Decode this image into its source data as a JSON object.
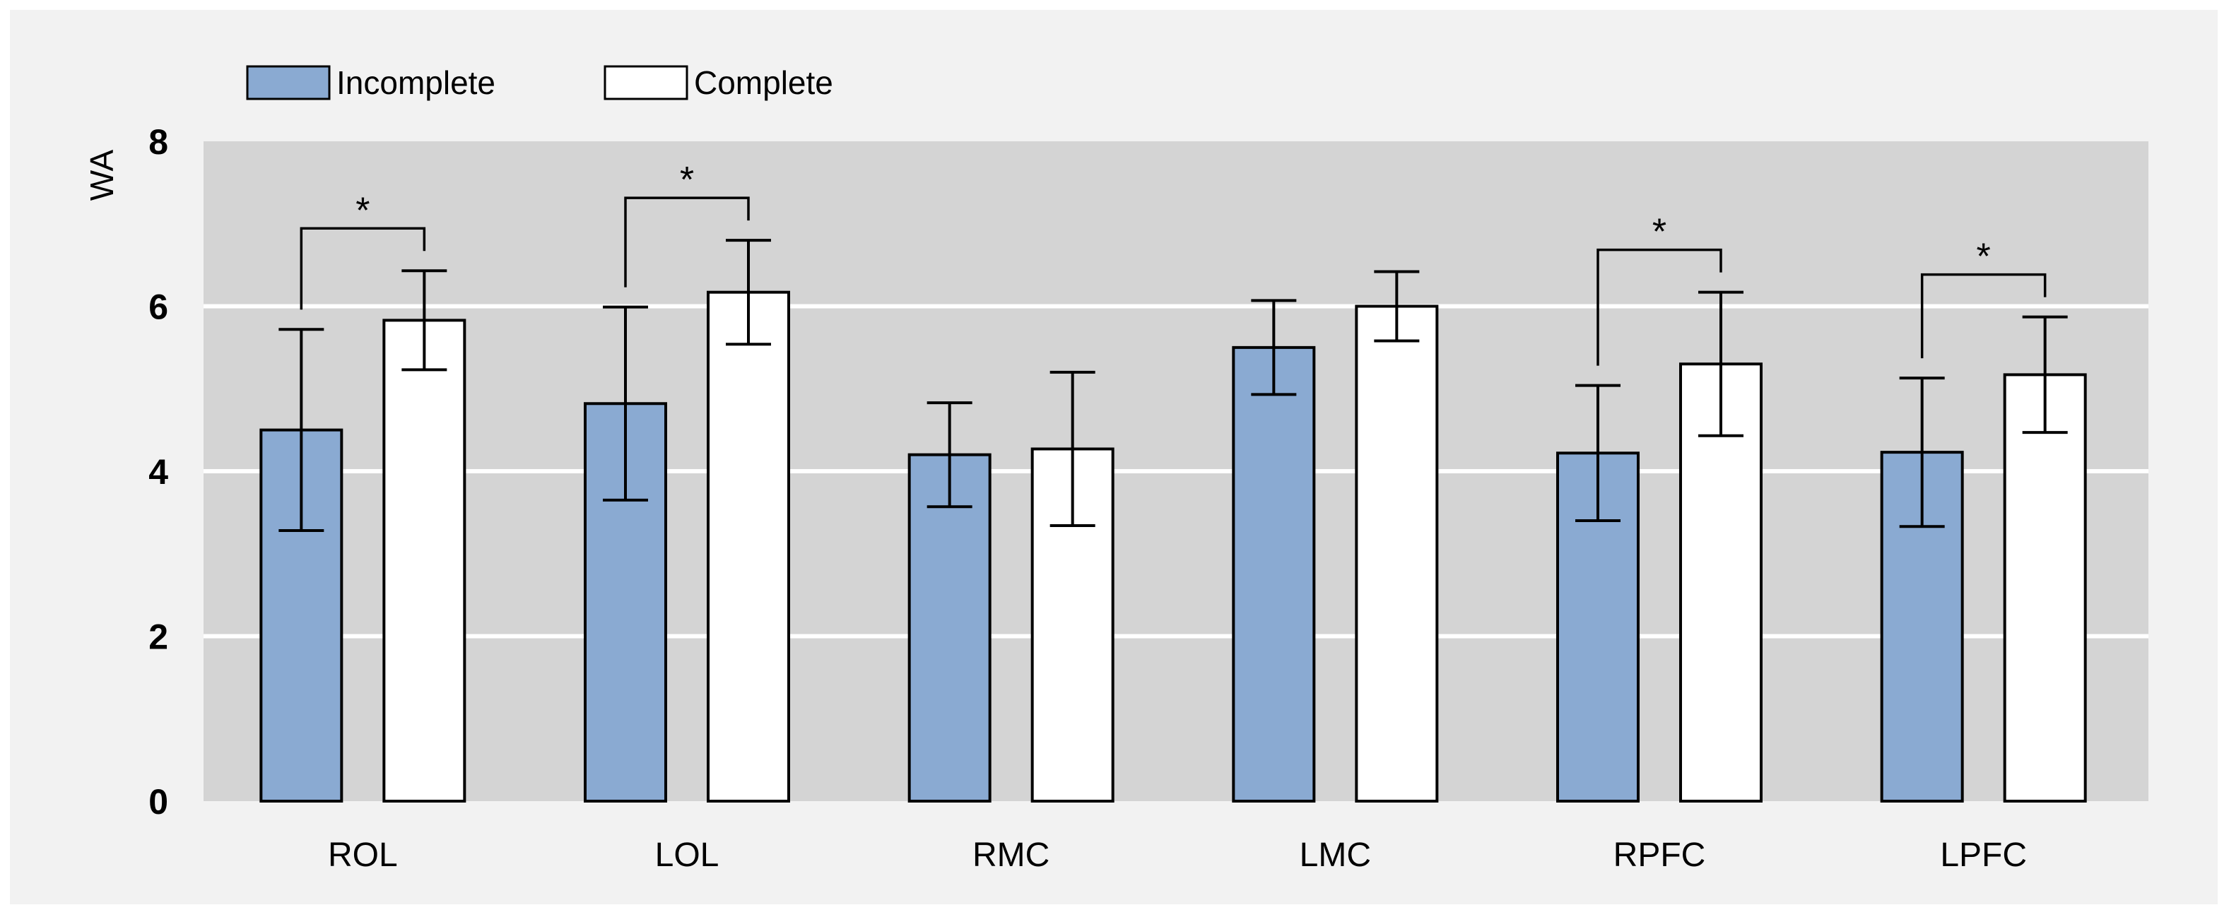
{
  "chart_data": {
    "type": "bar",
    "title": "",
    "xlabel": "",
    "ylabel": "WA",
    "ylim": [
      0,
      8
    ],
    "yticks": [
      0,
      2,
      4,
      6,
      8
    ],
    "grid": true,
    "legend_position": "top-left",
    "categories": [
      "ROL",
      "LOL",
      "RMC",
      "LMC",
      "RPFC",
      "LPFC"
    ],
    "series": [
      {
        "name": "Incomplete",
        "color": "#8aaad2",
        "values": [
          4.5,
          4.82,
          4.2,
          5.5,
          4.22,
          4.23
        ],
        "errors": [
          1.22,
          1.17,
          0.63,
          0.57,
          0.82,
          0.9
        ]
      },
      {
        "name": "Complete",
        "color": "#ffffff",
        "values": [
          5.83,
          6.17,
          4.27,
          6.0,
          5.3,
          5.17
        ],
        "errors": [
          0.6,
          0.63,
          0.93,
          0.42,
          0.87,
          0.7
        ]
      }
    ],
    "significance": [
      {
        "category": "ROL",
        "label": "*"
      },
      {
        "category": "LOL",
        "label": "*"
      },
      {
        "category": "RPFC",
        "label": "*"
      },
      {
        "category": "LPFC",
        "label": "*"
      }
    ]
  }
}
